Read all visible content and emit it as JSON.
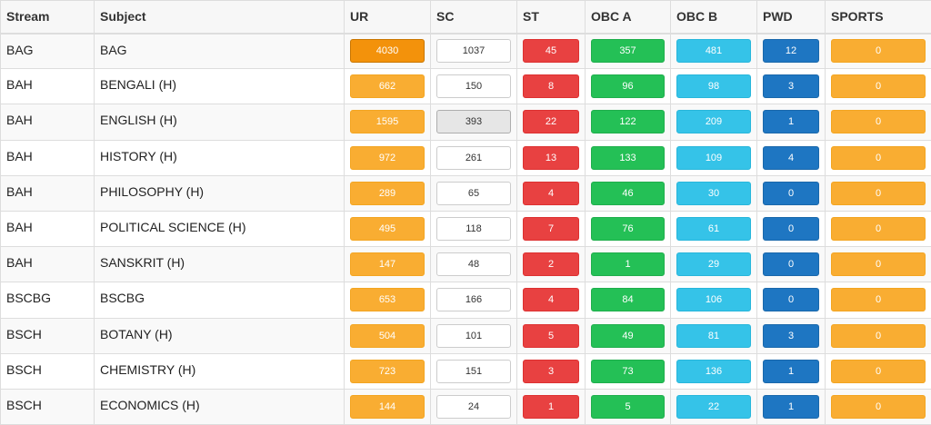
{
  "table": {
    "headers": {
      "stream": "Stream",
      "subject": "Subject",
      "ur": "UR",
      "sc": "SC",
      "st": "ST",
      "obca": "OBC A",
      "obcb": "OBC B",
      "pwd": "PWD",
      "sports": "SPORTS"
    },
    "rows": [
      {
        "stream": "BAG",
        "subject": "BAG",
        "ur": "4030",
        "sc": "1037",
        "st": "45",
        "obca": "357",
        "obcb": "481",
        "pwd": "12",
        "sports": "0"
      },
      {
        "stream": "BAH",
        "subject": "BENGALI (H)",
        "ur": "662",
        "sc": "150",
        "st": "8",
        "obca": "96",
        "obcb": "98",
        "pwd": "3",
        "sports": "0"
      },
      {
        "stream": "BAH",
        "subject": "ENGLISH (H)",
        "ur": "1595",
        "sc": "393",
        "st": "22",
        "obca": "122",
        "obcb": "209",
        "pwd": "1",
        "sports": "0"
      },
      {
        "stream": "BAH",
        "subject": "HISTORY (H)",
        "ur": "972",
        "sc": "261",
        "st": "13",
        "obca": "133",
        "obcb": "109",
        "pwd": "4",
        "sports": "0"
      },
      {
        "stream": "BAH",
        "subject": "PHILOSOPHY (H)",
        "ur": "289",
        "sc": "65",
        "st": "4",
        "obca": "46",
        "obcb": "30",
        "pwd": "0",
        "sports": "0"
      },
      {
        "stream": "BAH",
        "subject": "POLITICAL SCIENCE (H)",
        "ur": "495",
        "sc": "118",
        "st": "7",
        "obca": "76",
        "obcb": "61",
        "pwd": "0",
        "sports": "0"
      },
      {
        "stream": "BAH",
        "subject": "SANSKRIT (H)",
        "ur": "147",
        "sc": "48",
        "st": "2",
        "obca": "1",
        "obcb": "29",
        "pwd": "0",
        "sports": "0"
      },
      {
        "stream": "BSCBG",
        "subject": "BSCBG",
        "ur": "653",
        "sc": "166",
        "st": "4",
        "obca": "84",
        "obcb": "106",
        "pwd": "0",
        "sports": "0"
      },
      {
        "stream": "BSCH",
        "subject": "BOTANY (H)",
        "ur": "504",
        "sc": "101",
        "st": "5",
        "obca": "49",
        "obcb": "81",
        "pwd": "3",
        "sports": "0"
      },
      {
        "stream": "BSCH",
        "subject": "CHEMISTRY (H)",
        "ur": "723",
        "sc": "151",
        "st": "3",
        "obca": "73",
        "obcb": "136",
        "pwd": "1",
        "sports": "0"
      },
      {
        "stream": "BSCH",
        "subject": "ECONOMICS (H)",
        "ur": "144",
        "sc": "24",
        "st": "1",
        "obca": "5",
        "obcb": "22",
        "pwd": "1",
        "sports": "0"
      }
    ]
  },
  "state": {
    "active_ur_row": 0,
    "active_sc_row": 2
  },
  "colors": {
    "ur": "#f9ad32",
    "sc": "#ffffff",
    "st": "#e84141",
    "obca": "#24c056",
    "obcb": "#35c3e8",
    "pwd": "#1e76c2",
    "sports": "#f9ad32"
  }
}
